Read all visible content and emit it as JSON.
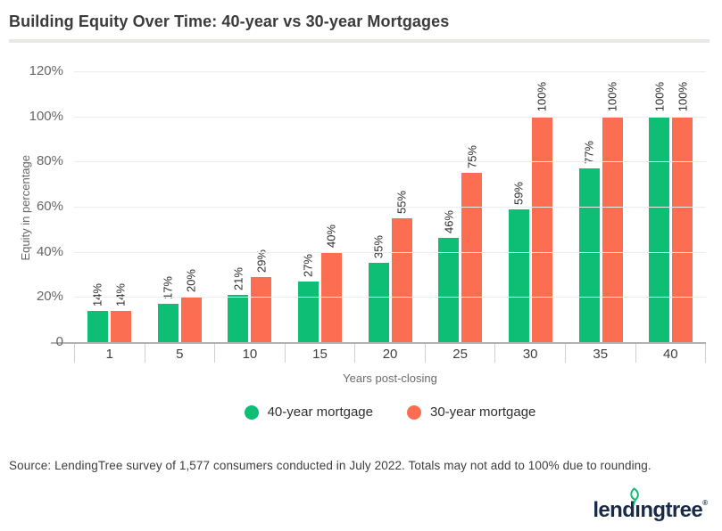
{
  "header": {
    "title": "Building Equity Over Time: 40-year vs 30-year Mortgages"
  },
  "chart_data": {
    "type": "bar",
    "categories": [
      "1",
      "5",
      "10",
      "15",
      "20",
      "25",
      "30",
      "35",
      "40"
    ],
    "series": [
      {
        "name": "40-year mortgage",
        "color": "#0dbe74",
        "values": [
          14,
          17,
          21,
          27,
          35,
          46,
          59,
          77,
          100
        ]
      },
      {
        "name": "30-year mortgage",
        "color": "#fb6e51",
        "values": [
          14,
          20,
          29,
          40,
          55,
          75,
          100,
          100,
          100
        ]
      }
    ],
    "bar_labels": {
      "40-year mortgage": [
        "14%",
        "17%",
        "21%",
        "27%",
        "35%",
        "46%",
        "59%",
        "77%",
        "100%"
      ],
      "30-year mortgage": [
        "14%",
        "20%",
        "29%",
        "40%",
        "55%",
        "75%",
        "100%",
        "100%",
        "100%"
      ]
    },
    "title": "Building Equity Over Time: 40-year vs 30-year Mortgages",
    "xlabel": "Years post-closing",
    "ylabel": "Equity in percentage",
    "ylim": [
      0,
      120
    ],
    "yticks": [
      "0",
      "20%",
      "40%",
      "60%",
      "80%",
      "100%",
      "120%"
    ],
    "grid": true,
    "legend_position": "bottom"
  },
  "footer": {
    "source": "Source: LendingTree survey of 1,577 consumers conducted in July 2022. Totals may not add to 100% due to rounding.",
    "logo_text": "lendıngtree",
    "logo_registered": "®"
  },
  "colors": {
    "series_40_year": "#0dbe74",
    "series_30_year": "#fb6e51",
    "title_text": "#3b3b3b",
    "axis_text": "#666666",
    "gridline": "#ececec",
    "axis_line": "#b1b1b1",
    "logo_navy": "#1a2b49"
  }
}
